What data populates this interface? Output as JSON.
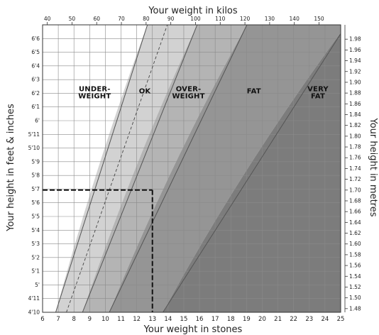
{
  "chart_data": {
    "type": "area",
    "title": "",
    "top_axis": {
      "label": "Your weight in kilos",
      "range": [
        38.1,
        158.8
      ],
      "ticks": [
        40,
        50,
        60,
        70,
        80,
        90,
        100,
        110,
        120,
        130,
        140,
        150
      ]
    },
    "bottom_axis": {
      "label": "Your weight in stones",
      "range": [
        6,
        25
      ],
      "ticks": [
        6,
        7,
        8,
        9,
        10,
        11,
        12,
        13,
        14,
        15,
        16,
        17,
        18,
        19,
        20,
        21,
        22,
        23,
        24,
        25
      ]
    },
    "left_axis": {
      "label": "Your height in feet & inches",
      "unit": "inches",
      "range": [
        58,
        79
      ],
      "ticks": [
        {
          "inches": 58,
          "label": "4'10"
        },
        {
          "inches": 59,
          "label": "4'11"
        },
        {
          "inches": 60,
          "label": "5'"
        },
        {
          "inches": 61,
          "label": "5'1"
        },
        {
          "inches": 62,
          "label": "5'2"
        },
        {
          "inches": 63,
          "label": "5'3"
        },
        {
          "inches": 64,
          "label": "5'4"
        },
        {
          "inches": 65,
          "label": "5'5"
        },
        {
          "inches": 66,
          "label": "5'6"
        },
        {
          "inches": 67,
          "label": "5'7"
        },
        {
          "inches": 68,
          "label": "5'8"
        },
        {
          "inches": 69,
          "label": "5'9"
        },
        {
          "inches": 70,
          "label": "5'10"
        },
        {
          "inches": 71,
          "label": "5'11"
        },
        {
          "inches": 72,
          "label": "6'"
        },
        {
          "inches": 73,
          "label": "6'1"
        },
        {
          "inches": 74,
          "label": "6'2"
        },
        {
          "inches": 75,
          "label": "6'3"
        },
        {
          "inches": 76,
          "label": "6'4"
        },
        {
          "inches": 77,
          "label": "6'5"
        },
        {
          "inches": 78,
          "label": "6'6"
        }
      ]
    },
    "right_axis": {
      "label": "Your height in metres",
      "ticks": [
        "1.48",
        "1.50",
        "1.52",
        "1.54",
        "1.56",
        "1.58",
        "1.60",
        "1.62",
        "1.64",
        "1.66",
        "1.68",
        "1.70",
        "1.72",
        "1.74",
        "1.76",
        "1.78",
        "1.80",
        "1.82",
        "1.84",
        "1.86",
        "1.88",
        "1.90",
        "1.92",
        "1.94",
        "1.96",
        "1.98"
      ]
    },
    "zones": [
      {
        "label_lines": [
          "UNDER-",
          "WEIGHT"
        ],
        "color": "#ffffff",
        "bmi_to": 20
      },
      {
        "label_lines": [
          "OK"
        ],
        "color": "#d2d2d2",
        "bmi_from": 20,
        "bmi_to": 25
      },
      {
        "label_lines": [
          "OVER-",
          "WEIGHT"
        ],
        "color": "#b4b4b4",
        "bmi_from": 25,
        "bmi_to": 30
      },
      {
        "label_lines": [
          "FAT"
        ],
        "color": "#959595",
        "bmi_from": 30,
        "bmi_to": 40
      },
      {
        "label_lines": [
          "VERY",
          "FAT"
        ],
        "color": "#7c7c7c",
        "bmi_from": 40
      }
    ],
    "dashed_reference_bmi": 22,
    "example_point": {
      "height_m": 1.7,
      "weight_stones": 13
    },
    "grid": true
  }
}
